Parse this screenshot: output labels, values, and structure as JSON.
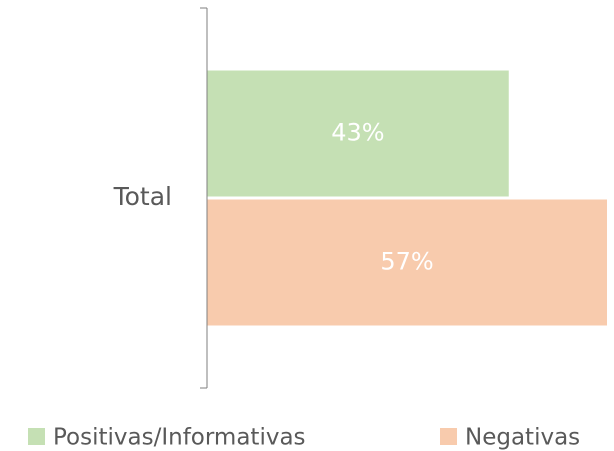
{
  "chart_data": {
    "type": "bar",
    "orientation": "horizontal",
    "categories": [
      "Total"
    ],
    "series": [
      {
        "name": "Positivas/Informativas",
        "color": "#c5e0b4",
        "values": [
          43
        ],
        "value_labels": [
          "43%"
        ]
      },
      {
        "name": "Negativas",
        "color": "#f8cbad",
        "values": [
          57
        ],
        "value_labels": [
          "57%"
        ]
      }
    ],
    "legend": "bottom"
  }
}
